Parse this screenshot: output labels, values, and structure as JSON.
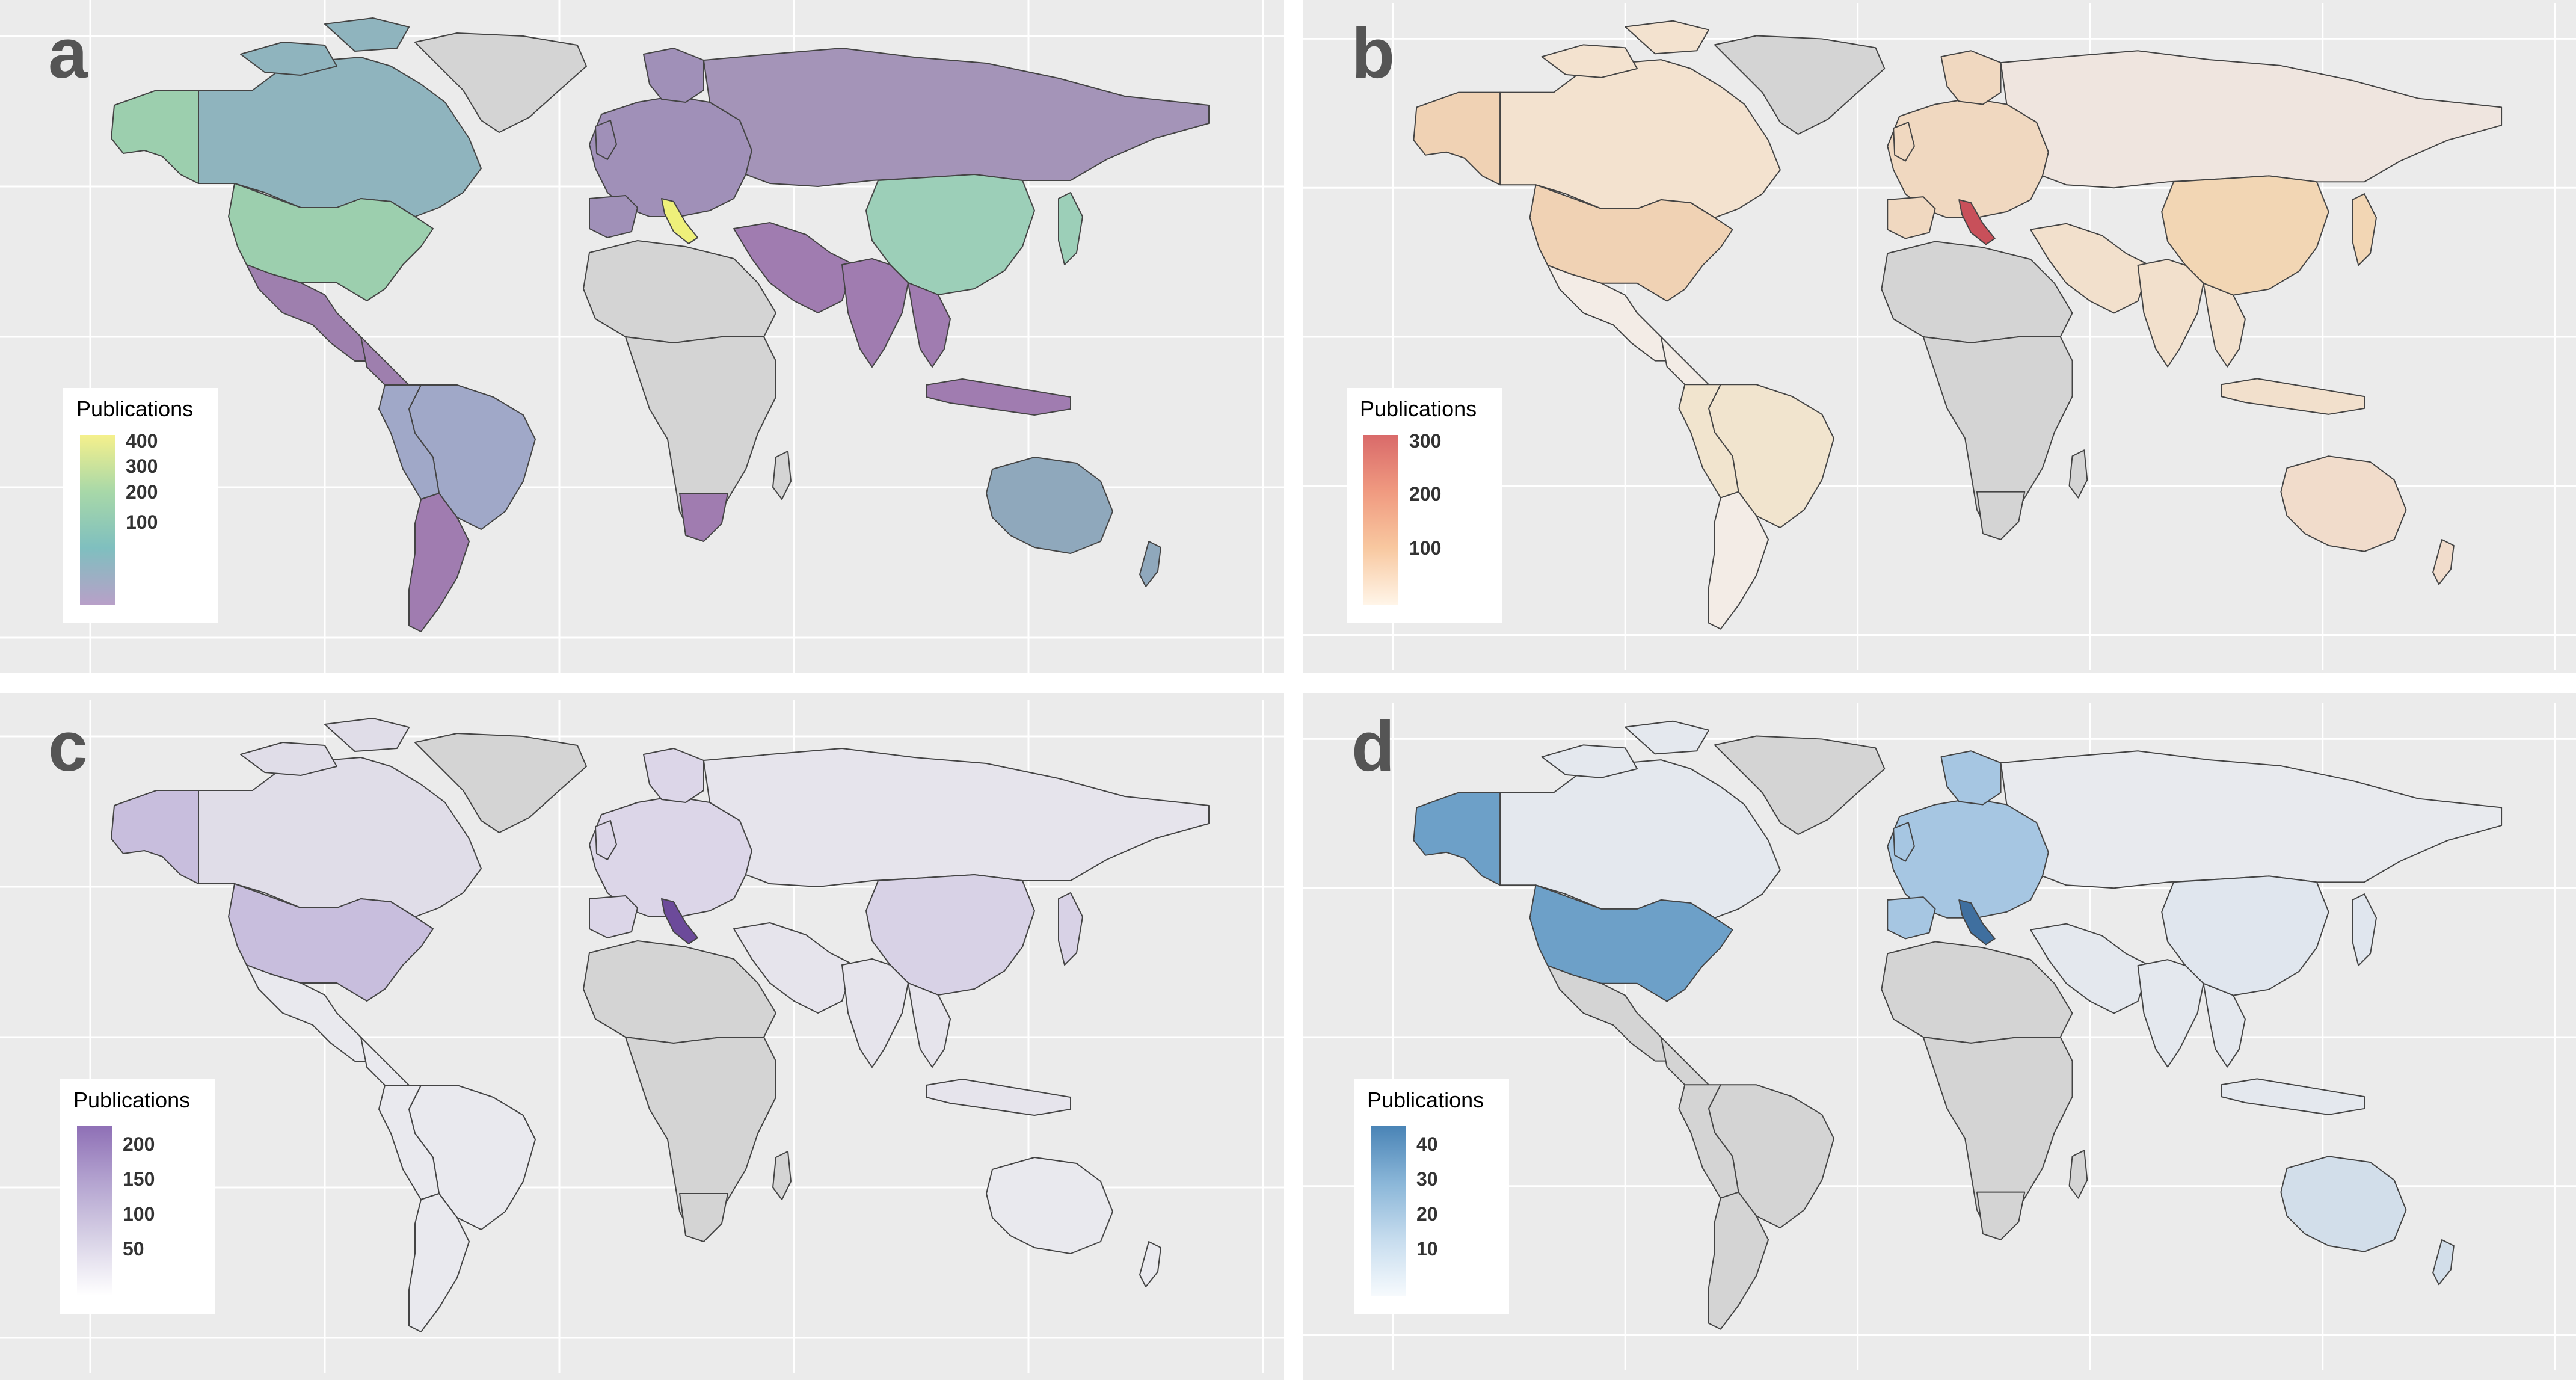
{
  "figure": {
    "panels": [
      {
        "letter": "a",
        "legend_title": "Publications",
        "ticks": [
          "400",
          "300",
          "200",
          "100"
        ],
        "scale": [
          "#b8a0c8",
          "#7fbfbf",
          "#a8d8a8",
          "#f5f08c"
        ],
        "land_default": "#d4d4d4",
        "highlight": {
          "usa": "#9ccfae",
          "canada": "#8fb4be",
          "alaska": "#9ccfae",
          "russia": "#a494b8",
          "china": "#9ccfb8",
          "brazil": "#a0a8c8",
          "australia": "#8fa8bc",
          "italy": "#eef07a",
          "argentina": "#a07cb0",
          "europe": "#a090b8",
          "mexico": "#9e7fae",
          "india": "#a07cb0",
          "safrica": "#a07cb0"
        }
      },
      {
        "letter": "b",
        "legend_title": "Publications",
        "ticks": [
          "300",
          "200",
          "100"
        ],
        "scale": [
          "#fff5e8",
          "#f8c8a0",
          "#f09a80",
          "#d96a6a"
        ],
        "land_default": "#d4d4d4",
        "highlight": {
          "usa": "#f0d2b4",
          "canada": "#f3e2cf",
          "alaska": "#f0d2b4",
          "russia": "#efe5df",
          "china": "#f2d6b4",
          "brazil": "#f1e4ce",
          "australia": "#f1dccb",
          "italy": "#c8505a",
          "argentina": "#f3ece6",
          "europe": "#f0d8c0",
          "mexico": "#f3ece6",
          "india": "#f2e0cc",
          "safrica": "#d4d4d4"
        }
      },
      {
        "letter": "c",
        "legend_title": "Publications",
        "ticks": [
          "200",
          "150",
          "100",
          "50"
        ],
        "scale": [
          "#ffffff",
          "#d8d2e6",
          "#b4a4d0",
          "#8f70b6"
        ],
        "land_default": "#d4d4d4",
        "highlight": {
          "usa": "#c8bedd",
          "canada": "#e0dde8",
          "alaska": "#c8bedd",
          "russia": "#e6e4ec",
          "china": "#d8d2e6",
          "brazil": "#e9e9ee",
          "australia": "#e9e9ee",
          "italy": "#6c4a9a",
          "argentina": "#e9e9ee",
          "europe": "#dcd6e8",
          "mexico": "#e9e9ee",
          "india": "#e6e4ec",
          "safrica": "#d4d4d4"
        }
      },
      {
        "letter": "d",
        "legend_title": "Publications",
        "ticks": [
          "40",
          "30",
          "20",
          "10"
        ],
        "scale": [
          "#f6fafd",
          "#c6dcee",
          "#8ab6d8",
          "#4a84b6"
        ],
        "land_default": "#d4d4d4",
        "highlight": {
          "usa": "#6da0c8",
          "canada": "#e4e8ee",
          "alaska": "#6da0c8",
          "russia": "#e8eaee",
          "china": "#e0e6ee",
          "brazil": "#d4d4d4",
          "australia": "#d2deea",
          "italy": "#3f6f9f",
          "argentina": "#d4d4d4",
          "europe": "#a6c6e2",
          "mexico": "#d4d4d4",
          "india": "#e4e8ee",
          "safrica": "#d4d4d4"
        }
      }
    ]
  }
}
